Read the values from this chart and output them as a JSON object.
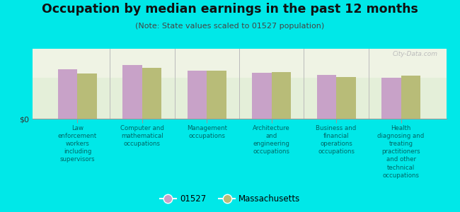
{
  "title": "Occupation by median earnings in the past 12 months",
  "subtitle": "(Note: State values scaled to 01527 population)",
  "categories": [
    "Law\nenforcement\nworkers\nincluding\nsupervisors",
    "Computer and\nmathematical\noccupations",
    "Management\noccupations",
    "Architecture\nand\nengineering\noccupations",
    "Business and\nfinancial\noperations\noccupations",
    "Health\ndiagnosing and\ntreating\npractitioners\nand other\ntechnical\noccupations"
  ],
  "values_01527": [
    0.6,
    0.65,
    0.58,
    0.56,
    0.53,
    0.5
  ],
  "values_ma": [
    0.55,
    0.62,
    0.58,
    0.57,
    0.51,
    0.52
  ],
  "color_01527": "#c8a2c8",
  "color_ma": "#b8bc78",
  "background_color": "#00e8e8",
  "plot_bg": "#eef2e2",
  "watermark": "City-Data.com",
  "legend_01527": "01527",
  "legend_ma": "Massachusetts",
  "ylabel": "$0",
  "bar_width": 0.3
}
